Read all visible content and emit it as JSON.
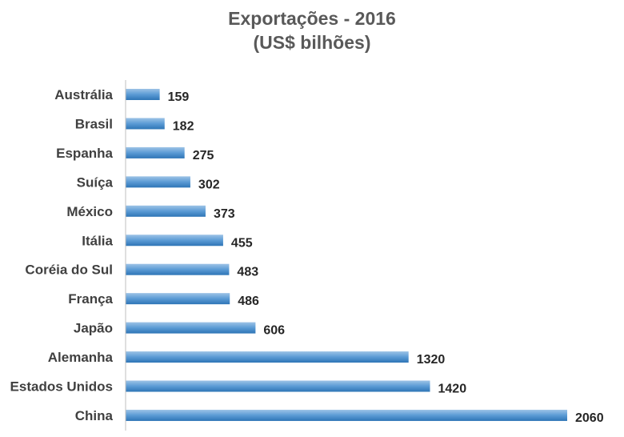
{
  "chart_data": {
    "type": "bar",
    "orientation": "horizontal",
    "title": "Exportações - 2016",
    "subtitle": "(US$ bilhões)",
    "categories": [
      "Austrália",
      "Brasil",
      "Espanha",
      "Suíça",
      "México",
      "Itália",
      "Coréia do Sul",
      "França",
      "Japão",
      "Alemanha",
      "Estados Unidos",
      "China"
    ],
    "values": [
      159,
      182,
      275,
      302,
      373,
      455,
      483,
      486,
      606,
      1320,
      1420,
      2060
    ],
    "xlim": [
      0,
      2060
    ],
    "grid": false,
    "legend": "none",
    "colors": {
      "bar_light": "#9dc3e6",
      "bar_mid": "#5b9bd5",
      "bar_dark": "#2e75b6",
      "axis": "#bfbfbf",
      "title": "#595959"
    }
  }
}
